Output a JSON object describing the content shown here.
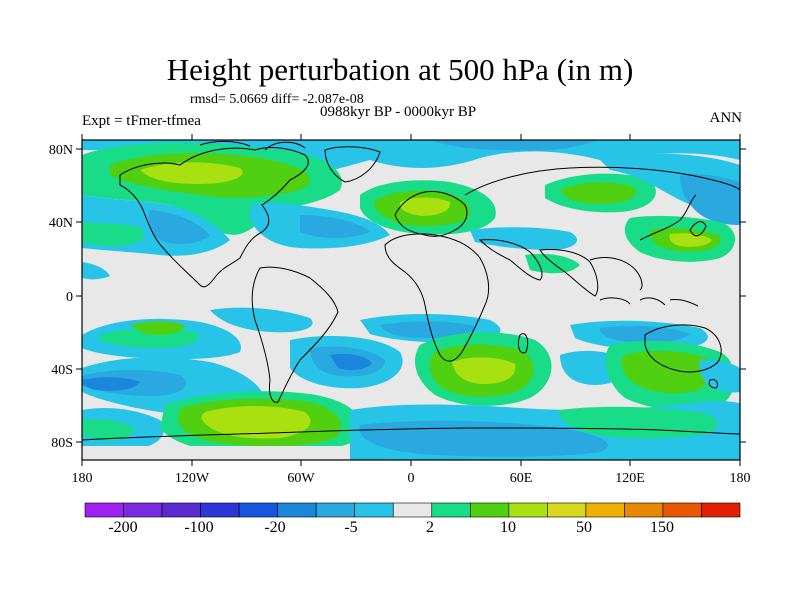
{
  "title": "Height perturbation at 500 hPa (in m)",
  "subtitle": {
    "stats": "rmsd= 5.0669 diff= -2.087e-08",
    "period": "0988kyr BP - 0000kyr BP",
    "experiment": "Expt = tFmer-tfmea",
    "season": "ANN"
  },
  "axes": {
    "lat_labels": [
      "80N",
      "40N",
      "0",
      "40S",
      "80S"
    ],
    "lon_labels": [
      "180",
      "120W",
      "60W",
      "0",
      "60E",
      "120E",
      "180"
    ]
  },
  "colorbar": {
    "colors": [
      "#a020f0",
      "#7a2ae0",
      "#5a2ad0",
      "#2a36d8",
      "#1456e0",
      "#1a86dc",
      "#2aa8e0",
      "#28c4e8",
      "#e8e8e8",
      "#18dc88",
      "#50d010",
      "#a8e010",
      "#d8d820",
      "#f0b000",
      "#e88800",
      "#e85800",
      "#e02000"
    ],
    "labels": [
      "-200",
      "-100",
      "-20",
      "-5",
      "2",
      "10",
      "50",
      "150"
    ]
  }
}
